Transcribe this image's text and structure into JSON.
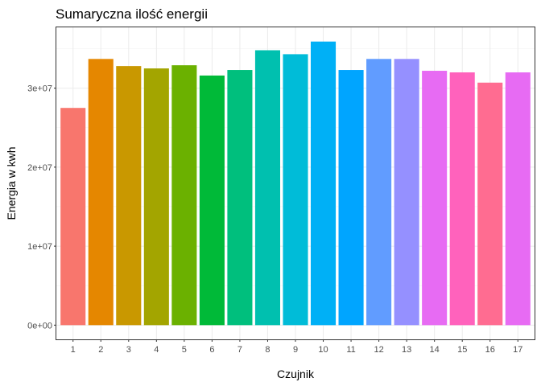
{
  "chart_data": {
    "type": "bar",
    "title": "Sumaryczna ilość energii",
    "xlabel": "Czujnik",
    "ylabel": "Energia w kwh",
    "categories": [
      "1",
      "2",
      "3",
      "4",
      "5",
      "6",
      "7",
      "8",
      "9",
      "10",
      "11",
      "12",
      "13",
      "14",
      "15",
      "16",
      "17"
    ],
    "values": [
      27500000,
      33700000,
      32800000,
      32500000,
      32900000,
      31600000,
      32300000,
      34800000,
      34300000,
      35900000,
      32300000,
      33700000,
      33700000,
      32200000,
      32000000,
      30700000,
      32000000
    ],
    "colors": [
      "#F8766D",
      "#E58700",
      "#C99800",
      "#A3A500",
      "#6BB100",
      "#00BA38",
      "#00BF7D",
      "#00C0AF",
      "#00BCD8",
      "#00B0F6",
      "#00A5FF",
      "#619CFF",
      "#9590FF",
      "#E76BF3",
      "#FF62BC",
      "#FF6C91",
      "#E76BF3"
    ],
    "y_ticks": [
      0,
      10000000,
      20000000,
      30000000
    ],
    "y_tick_labels": [
      "0e+00",
      "1e+07",
      "2e+07",
      "3e+07"
    ],
    "ylim": [
      -1800000,
      37700000
    ],
    "grid": true,
    "legend": "none"
  }
}
